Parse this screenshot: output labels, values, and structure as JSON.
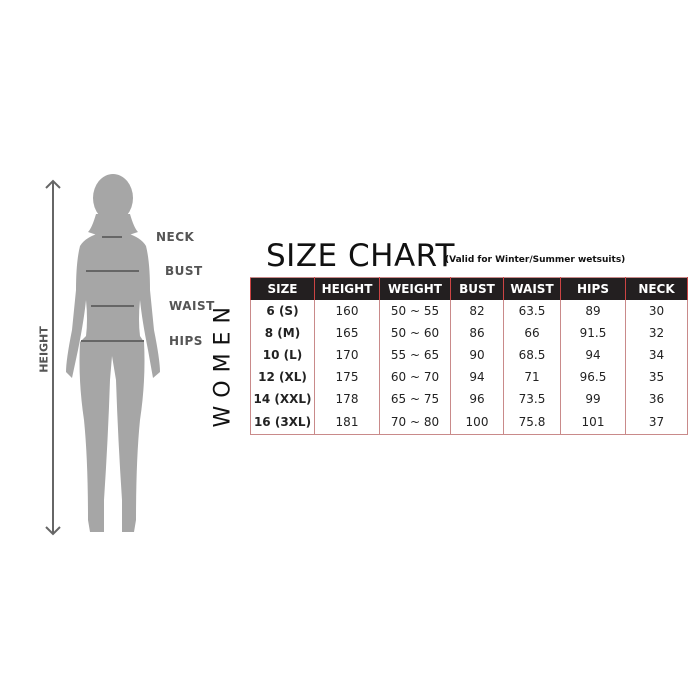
{
  "figure": {
    "labels": {
      "neck": "NECK",
      "bust": "BUST",
      "waist": "WAIST",
      "hips": "HIPS",
      "height": "HEIGHT"
    }
  },
  "chart": {
    "title": "SIZE CHART",
    "subtitle": "(Valid for Winter/Summer wetsuits)",
    "group_label": "WOMEN",
    "columns": [
      "SIZE",
      "HEIGHT",
      "WEIGHT",
      "BUST",
      "WAIST",
      "HIPS",
      "NECK"
    ],
    "rows": [
      [
        "6 (S)",
        "160",
        "50 ~ 55",
        "82",
        "63.5",
        "89",
        "30"
      ],
      [
        "8 (M)",
        "165",
        "50 ~ 60",
        "86",
        "66",
        "91.5",
        "32"
      ],
      [
        "10 (L)",
        "170",
        "55 ~ 65",
        "90",
        "68.5",
        "94",
        "34"
      ],
      [
        "12 (XL)",
        "175",
        "60 ~ 70",
        "94",
        "71",
        "96.5",
        "35"
      ],
      [
        "14 (XXL)",
        "178",
        "65 ~ 75",
        "96",
        "73.5",
        "99",
        "36"
      ],
      [
        "16 (3XL)",
        "181",
        "70 ~ 80",
        "100",
        "75.8",
        "101",
        "37"
      ]
    ]
  },
  "colors": {
    "header_bg": "#231f20",
    "border": "#c98a8a",
    "silhouette": "#a6a6a6"
  }
}
